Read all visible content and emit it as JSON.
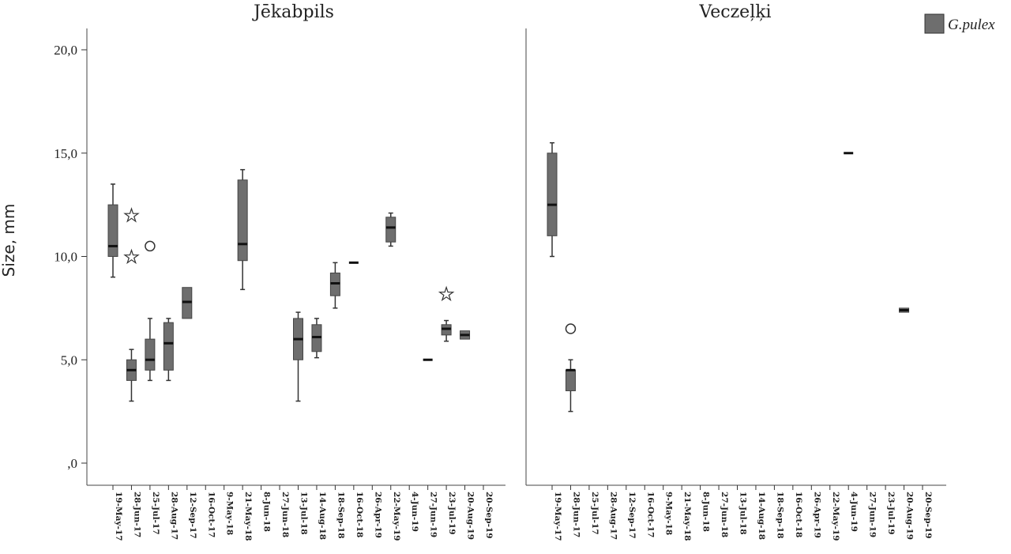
{
  "chart_data": {
    "type": "boxplot",
    "ylabel": "Size, mm",
    "ylim": [
      0,
      20
    ],
    "yticks": [
      0,
      5,
      10,
      15,
      20
    ],
    "ytick_labels": [
      ",0",
      "5,0",
      "10,0",
      "15,0",
      "20,0"
    ],
    "legend": {
      "label": "G.pulex",
      "position": "top-right",
      "color": "#6e6e6e"
    },
    "box_color": "#6e6e6e",
    "categories": [
      "19-May-17",
      "28-Jun-17",
      "25-Jul-17",
      "28-Aug-17",
      "12-Sep-17",
      "16-Oct-17",
      "9-May-18",
      "21-May-18",
      "8-Jun-18",
      "27-Jun-18",
      "13-Jul-18",
      "14-Aug-18",
      "18-Sep-18",
      "16-Oct-18",
      "26-Apr-19",
      "22-May-19",
      "4-Jun-19",
      "27-Jun-19",
      "23-Jul-19",
      "20-Aug-19",
      "20-Sep-19"
    ],
    "panels": [
      {
        "title": "Jēkabpils",
        "boxes": [
          {
            "category": "19-May-17",
            "min": 9.0,
            "q1": 10.0,
            "median": 10.5,
            "q3": 12.5,
            "max": 13.5
          },
          {
            "category": "28-Jun-17",
            "min": 3.0,
            "q1": 4.0,
            "median": 4.5,
            "q3": 5.0,
            "max": 5.5
          },
          {
            "category": "25-Jul-17",
            "min": 4.0,
            "q1": 4.5,
            "median": 5.0,
            "q3": 6.0,
            "max": 7.0
          },
          {
            "category": "28-Aug-17",
            "min": 4.0,
            "q1": 4.5,
            "median": 5.8,
            "q3": 6.8,
            "max": 7.0
          },
          {
            "category": "12-Sep-17",
            "min": 7.0,
            "q1": 7.0,
            "median": 7.8,
            "q3": 8.5,
            "max": 8.5
          },
          {
            "category": "21-May-18",
            "min": 8.4,
            "q1": 9.8,
            "median": 10.6,
            "q3": 13.7,
            "max": 14.2
          },
          {
            "category": "13-Jul-18",
            "min": 3.0,
            "q1": 5.0,
            "median": 6.0,
            "q3": 7.0,
            "max": 7.3
          },
          {
            "category": "14-Aug-18",
            "min": 5.1,
            "q1": 5.4,
            "median": 6.1,
            "q3": 6.7,
            "max": 7.0
          },
          {
            "category": "18-Sep-18",
            "min": 7.5,
            "q1": 8.1,
            "median": 8.7,
            "q3": 9.2,
            "max": 9.7
          },
          {
            "category": "16-Oct-18",
            "min": 9.7,
            "q1": 9.7,
            "median": 9.7,
            "q3": 9.7,
            "max": 9.7
          },
          {
            "category": "22-May-19",
            "min": 10.5,
            "q1": 10.7,
            "median": 11.4,
            "q3": 11.9,
            "max": 12.1
          },
          {
            "category": "27-Jun-19",
            "min": 5.0,
            "q1": 5.0,
            "median": 5.0,
            "q3": 5.0,
            "max": 5.0
          },
          {
            "category": "23-Jul-19",
            "min": 5.9,
            "q1": 6.2,
            "median": 6.5,
            "q3": 6.7,
            "max": 6.9
          },
          {
            "category": "20-Aug-19",
            "min": 6.0,
            "q1": 6.0,
            "median": 6.2,
            "q3": 6.4,
            "max": 6.4
          }
        ],
        "outliers": [
          {
            "category": "28-Jun-17",
            "value": 12.0,
            "marker": "star"
          },
          {
            "category": "28-Jun-17",
            "value": 10.0,
            "marker": "star"
          },
          {
            "category": "25-Jul-17",
            "value": 10.5,
            "marker": "circle"
          },
          {
            "category": "23-Jul-19",
            "value": 8.2,
            "marker": "star"
          }
        ]
      },
      {
        "title": "Veczeļķi",
        "boxes": [
          {
            "category": "19-May-17",
            "min": 10.0,
            "q1": 11.0,
            "median": 12.5,
            "q3": 15.0,
            "max": 15.5
          },
          {
            "category": "28-Jun-17",
            "min": 2.5,
            "q1": 3.5,
            "median": 4.5,
            "q3": 4.5,
            "max": 5.0
          },
          {
            "category": "4-Jun-19",
            "min": 15.0,
            "q1": 15.0,
            "median": 15.0,
            "q3": 15.0,
            "max": 15.0
          },
          {
            "category": "20-Aug-19",
            "min": 7.3,
            "q1": 7.3,
            "median": 7.4,
            "q3": 7.5,
            "max": 7.5
          }
        ],
        "outliers": [
          {
            "category": "28-Jun-17",
            "value": 6.5,
            "marker": "circle"
          }
        ]
      }
    ]
  }
}
